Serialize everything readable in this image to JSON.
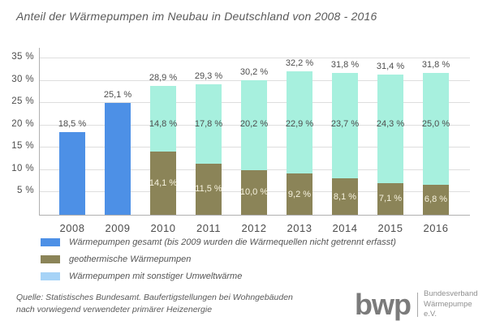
{
  "title": "Anteil der Wärmepumpen im Neubau in Deutschland von 2008 - 2016",
  "colors": {
    "total_blue": "#4D90E6",
    "geo_olive": "#8B8458",
    "umwelt_mint": "#A7F0DE",
    "legend_lightblue": "#A6D3F7",
    "grid": "#DEDEDE",
    "axis": "#B0B0B0"
  },
  "chart_data": {
    "type": "bar",
    "stacked": true,
    "title": "Anteil der Wärmepumpen im Neubau in Deutschland von 2008 - 2016",
    "categories": [
      "2008",
      "2009",
      "2010",
      "2011",
      "2012",
      "2013",
      "2014",
      "2015",
      "2016"
    ],
    "series": [
      {
        "name": "Wärmepumpen gesamt",
        "color_key": "total_blue",
        "values": [
          18.5,
          25.1,
          null,
          null,
          null,
          null,
          null,
          null,
          null
        ]
      },
      {
        "name": "geothermische Wärmepumpen",
        "color_key": "geo_olive",
        "values": [
          null,
          null,
          14.1,
          11.5,
          10.0,
          9.2,
          8.1,
          7.1,
          6.8
        ]
      },
      {
        "name": "Wärmepumpen mit sonstiger Umweltwärme",
        "color_key": "umwelt_mint",
        "values": [
          null,
          null,
          14.8,
          17.8,
          20.2,
          22.9,
          23.7,
          24.3,
          25.0
        ]
      }
    ],
    "totals": [
      18.5,
      25.1,
      28.9,
      29.3,
      30.2,
      32.2,
      31.8,
      31.4,
      31.8
    ],
    "total_labels": [
      "18,5 %",
      "25,1 %",
      "28,9 %",
      "29,3 %",
      "30,2 %",
      "32,2 %",
      "31,8 %",
      "31,4 %",
      "31,8 %"
    ],
    "segment_labels": {
      "geo": [
        "14,1 %",
        "11,5 %",
        "10,0 %",
        "9,2 %",
        "8,1 %",
        "7,1 %",
        "6,8 %"
      ],
      "umwelt": [
        "14,8 %",
        "17,8 %",
        "20,2 %",
        "22,9 %",
        "23,7 %",
        "24,3 %",
        "25,0 %"
      ]
    },
    "y_ticks": [
      {
        "value": 35,
        "label": "35 %"
      },
      {
        "value": 30,
        "label": "30 %"
      },
      {
        "value": 25,
        "label": "25 %"
      },
      {
        "value": 20,
        "label": "20 %"
      },
      {
        "value": 15,
        "label": "15 %"
      },
      {
        "value": 10,
        "label": "10 %"
      },
      {
        "value": 5,
        "label": "5 %"
      }
    ],
    "ylim": [
      0,
      37.4
    ],
    "grid": true,
    "legend_position": "bottom"
  },
  "legend": {
    "items": [
      {
        "label": "Wärmepumpen gesamt (bis 2009 wurden die Wärmequellen nicht getrennt erfasst)",
        "color_key": "total_blue"
      },
      {
        "label": "geothermische Wärmepumpen",
        "color_key": "geo_olive"
      },
      {
        "label": "Wärmepumpen mit sonstiger Umweltwärme",
        "color_key": "legend_lightblue"
      }
    ]
  },
  "source": {
    "line1": "Quelle: Statistisches Bundesamt. Baufertigstellungen bei Wohngebäuden",
    "line2": "nach vorwiegend verwendeter primärer Heizenergie"
  },
  "logo": {
    "text": "bwp",
    "org_line1": "Bundesverband",
    "org_line2": "Wärmepumpe e.V."
  }
}
